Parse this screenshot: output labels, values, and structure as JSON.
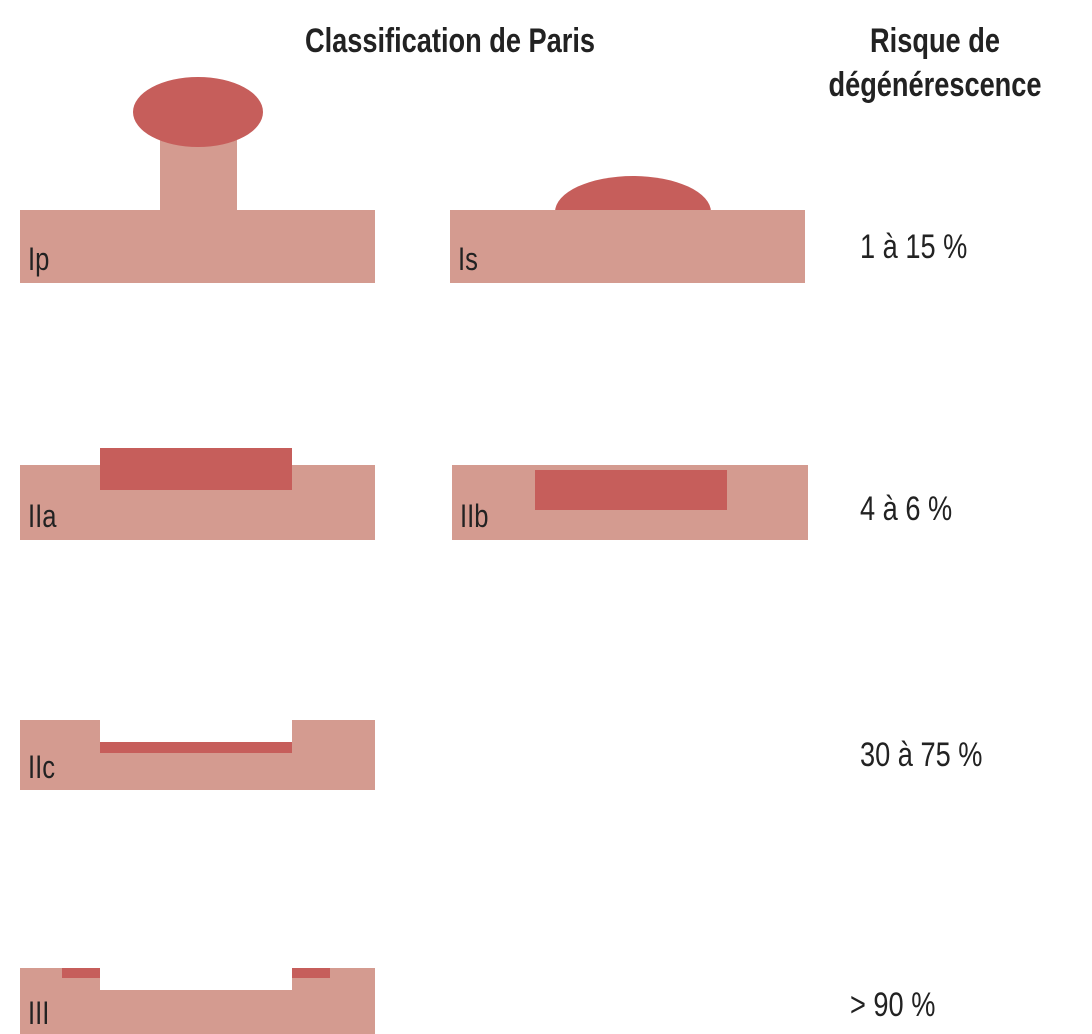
{
  "header": {
    "title": "Classification de Paris",
    "risk_title": [
      "Risque de",
      "dégénérescence"
    ]
  },
  "rows": [
    {
      "types": [
        "Ip",
        "Is"
      ],
      "risk": "1 à 15 %"
    },
    {
      "types": [
        "IIa",
        "IIb"
      ],
      "risk": "4 à 6 %"
    },
    {
      "types": [
        "IIc"
      ],
      "risk": "30 à 75 %"
    },
    {
      "types": [
        "III"
      ],
      "risk": "> 90 %"
    }
  ]
}
